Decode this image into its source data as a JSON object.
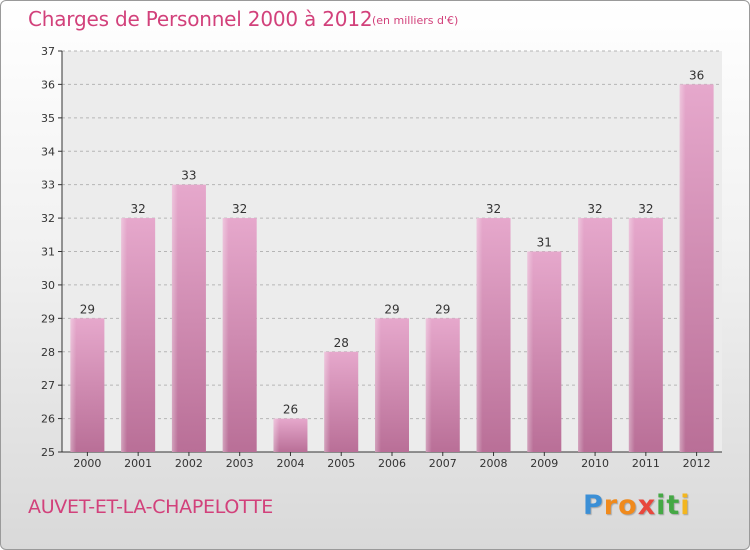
{
  "chart_data": {
    "type": "bar",
    "title": "Charges de Personnel 2000 à 2012",
    "subtitle": "(en milliers d'€)",
    "categories": [
      "2000",
      "2001",
      "2002",
      "2003",
      "2004",
      "2005",
      "2006",
      "2007",
      "2008",
      "2009",
      "2010",
      "2011",
      "2012"
    ],
    "values": [
      29,
      32,
      33,
      32,
      26,
      28,
      29,
      29,
      32,
      31,
      32,
      32,
      36
    ],
    "data_labels": [
      "29",
      "32",
      "33",
      "32",
      "26",
      "28",
      "29",
      "29",
      "32",
      "31",
      "32",
      "32",
      "36"
    ],
    "ylim": [
      25,
      37
    ],
    "yticks": [
      25,
      26,
      27,
      28,
      29,
      30,
      31,
      32,
      33,
      34,
      35,
      36,
      37
    ],
    "grid": "dashed horizontal",
    "bar_color": "#cf78a6"
  },
  "footer": {
    "commune": "AUVET-ET-LA-CHAPELOTTE",
    "logo_letters": [
      "P",
      "r",
      "o",
      "x",
      "i",
      "t",
      "i"
    ],
    "logo_colors": [
      "#3b8fd6",
      "#f08a1c",
      "#f08a1c",
      "#e8473c",
      "#45a845",
      "#45a845",
      "#f3b61f"
    ]
  },
  "colors": {
    "accent": "#d2417b",
    "axis": "#333333"
  }
}
